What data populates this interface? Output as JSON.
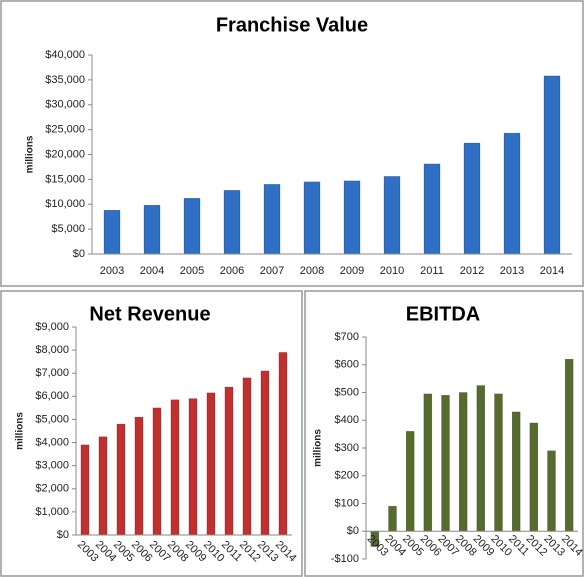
{
  "chart_data": [
    {
      "type": "bar",
      "title": "Franchise Value",
      "y_label": "millions",
      "categories": [
        "2003",
        "2004",
        "2005",
        "2006",
        "2007",
        "2008",
        "2009",
        "2010",
        "2011",
        "2012",
        "2013",
        "2014"
      ],
      "values": [
        8800,
        9800,
        11200,
        12800,
        14000,
        14500,
        14700,
        15600,
        18100,
        22300,
        24300,
        35800
      ],
      "color": "#2f6fc4",
      "ylim": [
        0,
        40000
      ],
      "yticks": [
        {
          "value": 0,
          "label": "$0"
        },
        {
          "value": 5000,
          "label": "$5,000"
        },
        {
          "value": 10000,
          "label": "$10,000"
        },
        {
          "value": 15000,
          "label": "$15,000"
        },
        {
          "value": 20000,
          "label": "$20,000"
        },
        {
          "value": 25000,
          "label": "$25,000"
        },
        {
          "value": 30000,
          "label": "$30,000"
        },
        {
          "value": 35000,
          "label": "$35,000"
        },
        {
          "value": 40000,
          "label": "$40,000"
        }
      ]
    },
    {
      "type": "bar",
      "title": "Net Revenue",
      "y_label": "millions",
      "categories": [
        "2003",
        "2004",
        "2005",
        "2006",
        "2007",
        "2008",
        "2009",
        "2010",
        "2011",
        "2012",
        "2013",
        "2014"
      ],
      "values": [
        3900,
        4250,
        4800,
        5100,
        5500,
        5850,
        5900,
        6150,
        6400,
        6800,
        7100,
        7900
      ],
      "color": "#c0302f",
      "ylim": [
        0,
        9000
      ],
      "yticks": [
        {
          "value": 0,
          "label": "$0"
        },
        {
          "value": 1000,
          "label": "$1,000"
        },
        {
          "value": 2000,
          "label": "$2,000"
        },
        {
          "value": 3000,
          "label": "$3,000"
        },
        {
          "value": 4000,
          "label": "$4,000"
        },
        {
          "value": 5000,
          "label": "$5,000"
        },
        {
          "value": 6000,
          "label": "$6,000"
        },
        {
          "value": 7000,
          "label": "$7,000"
        },
        {
          "value": 8000,
          "label": "$8,000"
        },
        {
          "value": 9000,
          "label": "$9,000"
        }
      ]
    },
    {
      "type": "bar",
      "title": "EBITDA",
      "y_label": "millions",
      "categories": [
        "2003",
        "2004",
        "2005",
        "2006",
        "2007",
        "2008",
        "2009",
        "2010",
        "2011",
        "2012",
        "2013",
        "2014"
      ],
      "values": [
        -55,
        90,
        360,
        495,
        490,
        500,
        525,
        495,
        430,
        390,
        290,
        620
      ],
      "color": "#566b2e",
      "ylim": [
        -100,
        700
      ],
      "yticks": [
        {
          "value": -100,
          "label": "-$100"
        },
        {
          "value": 0,
          "label": "$0"
        },
        {
          "value": 100,
          "label": "$100"
        },
        {
          "value": 200,
          "label": "$200"
        },
        {
          "value": 300,
          "label": "$300"
        },
        {
          "value": 400,
          "label": "$400"
        },
        {
          "value": 500,
          "label": "$500"
        },
        {
          "value": 600,
          "label": "$600"
        },
        {
          "value": 700,
          "label": "$700"
        }
      ]
    }
  ]
}
